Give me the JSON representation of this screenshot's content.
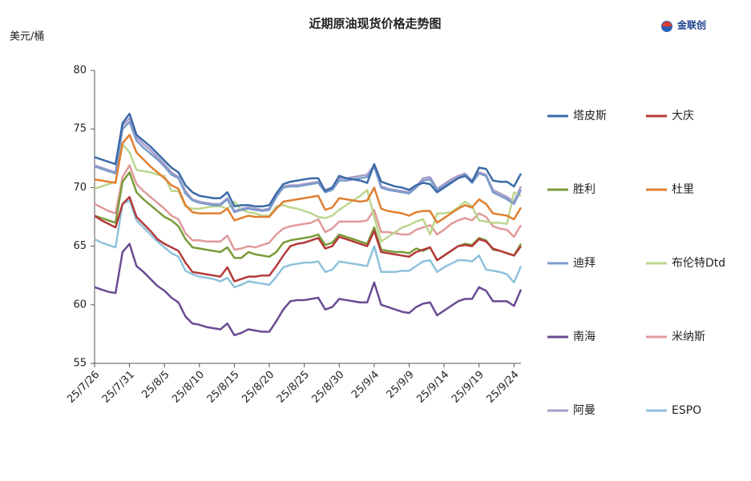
{
  "chart_data": {
    "type": "line",
    "title": "近期原油现货价格走势图",
    "y_label": "美元/桶",
    "logo": "金联创",
    "categories": [
      "25/7/26",
      null,
      null,
      null,
      null,
      "25/7/31",
      null,
      null,
      null,
      null,
      "25/8/5",
      null,
      null,
      null,
      null,
      "25/8/10",
      null,
      null,
      null,
      null,
      "25/8/15",
      null,
      null,
      null,
      null,
      "25/8/20",
      null,
      null,
      null,
      null,
      "25/8/25",
      null,
      null,
      null,
      null,
      "25/8/30",
      null,
      null,
      null,
      null,
      "25/9/4",
      null,
      null,
      null,
      null,
      "25/9/9",
      null,
      null,
      null,
      null,
      "25/9/14",
      null,
      null,
      null,
      null,
      "25/9/19",
      null,
      null,
      null,
      null,
      "25/9/24",
      null
    ],
    "ylim": [
      55,
      80
    ],
    "yticks": [
      55,
      60,
      65,
      70,
      75,
      80
    ],
    "grid": false,
    "series": [
      {
        "name": "塔皮斯",
        "color": "#3b6aa8",
        "values": [
          72.6,
          72.4,
          72.2,
          72.0,
          75.5,
          76.3,
          74.5,
          74.0,
          73.5,
          72.9,
          72.3,
          71.7,
          71.3,
          70.2,
          69.6,
          69.3,
          69.2,
          69.1,
          69.1,
          69.6,
          68.4,
          68.5,
          68.5,
          68.4,
          68.4,
          68.5,
          69.5,
          70.3,
          70.5,
          70.6,
          70.7,
          70.8,
          70.8,
          69.7,
          70.0,
          71.0,
          70.8,
          70.7,
          70.6,
          70.4,
          72.0,
          70.5,
          70.3,
          70.1,
          70.0,
          69.8,
          70.2,
          70.4,
          70.3,
          69.6,
          70.0,
          70.4,
          70.8,
          71.0,
          70.5,
          71.7,
          71.6,
          70.6,
          70.5,
          70.5,
          70.1,
          71.2
        ]
      },
      {
        "name": "大庆",
        "color": "#b5393a",
        "values": [
          67.6,
          67.2,
          66.9,
          66.6,
          68.6,
          69.2,
          67.5,
          66.9,
          66.3,
          65.6,
          65.2,
          64.9,
          64.6,
          63.6,
          62.8,
          62.7,
          62.6,
          62.5,
          62.4,
          63.2,
          62.0,
          62.2,
          62.4,
          62.4,
          62.5,
          62.5,
          63.3,
          64.2,
          65.0,
          65.2,
          65.3,
          65.5,
          65.7,
          64.8,
          65.0,
          65.8,
          65.6,
          65.4,
          65.2,
          65.0,
          66.3,
          64.5,
          64.4,
          64.3,
          64.2,
          64.1,
          64.5,
          64.7,
          64.9,
          63.8,
          64.2,
          64.6,
          65.0,
          65.1,
          65.0,
          65.6,
          65.4,
          64.8,
          64.6,
          64.4,
          64.2,
          65.0
        ]
      },
      {
        "name": "胜利",
        "color": "#7a9a3a",
        "values": [
          67.6,
          67.4,
          67.2,
          67.0,
          70.5,
          71.3,
          69.6,
          69.0,
          68.5,
          68.0,
          67.5,
          67.2,
          66.7,
          65.6,
          64.9,
          64.8,
          64.7,
          64.6,
          64.5,
          64.9,
          64.0,
          64.0,
          64.5,
          64.3,
          64.2,
          64.1,
          64.5,
          65.3,
          65.5,
          65.6,
          65.7,
          65.8,
          66.0,
          65.1,
          65.3,
          66.0,
          65.8,
          65.6,
          65.4,
          65.2,
          66.6,
          64.7,
          64.6,
          64.5,
          64.5,
          64.4,
          64.8,
          64.6,
          64.9,
          63.8,
          64.2,
          64.6,
          65.0,
          65.2,
          65.1,
          65.7,
          65.5,
          64.7,
          64.6,
          64.4,
          64.2,
          65.2
        ]
      },
      {
        "name": "杜里",
        "color": "#e07f30",
        "values": [
          70.7,
          70.6,
          70.5,
          70.4,
          73.8,
          74.5,
          73.0,
          72.4,
          71.8,
          71.3,
          70.8,
          70.2,
          69.9,
          68.5,
          67.9,
          67.8,
          67.8,
          67.8,
          67.8,
          68.2,
          67.2,
          67.4,
          67.6,
          67.5,
          67.5,
          67.5,
          68.2,
          68.8,
          68.9,
          69.0,
          69.1,
          69.2,
          69.3,
          68.1,
          68.3,
          69.1,
          69.0,
          68.9,
          68.8,
          68.9,
          70.0,
          68.2,
          68.0,
          67.9,
          67.8,
          67.6,
          67.9,
          68.0,
          68.0,
          67.0,
          67.4,
          67.8,
          68.2,
          68.5,
          68.3,
          69.0,
          68.6,
          67.8,
          67.7,
          67.6,
          67.3,
          68.3
        ]
      },
      {
        "name": "迪拜",
        "color": "#7b9ccc",
        "values": [
          71.8,
          71.6,
          71.4,
          71.2,
          75.0,
          75.6,
          74.0,
          73.4,
          72.9,
          72.4,
          71.8,
          71.1,
          70.8,
          69.5,
          68.9,
          68.7,
          68.6,
          68.5,
          68.5,
          69.0,
          67.9,
          68.1,
          68.2,
          68.1,
          68.0,
          68.1,
          69.2,
          70.0,
          70.1,
          70.1,
          70.2,
          70.3,
          70.4,
          69.6,
          69.8,
          70.6,
          70.6,
          70.7,
          70.8,
          70.9,
          71.8,
          70.0,
          69.8,
          69.7,
          69.6,
          69.5,
          70.0,
          70.6,
          70.7,
          69.8,
          70.1,
          70.5,
          70.8,
          71.1,
          70.4,
          71.2,
          71.0,
          69.6,
          69.3,
          69.0,
          68.6,
          69.8
        ]
      },
      {
        "name": "布伦特Dtd",
        "color": "#bcd68f",
        "values": [
          69.9,
          70.1,
          70.3,
          70.5,
          73.7,
          73.0,
          71.5,
          71.4,
          71.3,
          71.1,
          71.0,
          69.7,
          69.7,
          68.4,
          68.2,
          68.2,
          68.3,
          68.4,
          68.4,
          68.2,
          68.8,
          68.1,
          67.9,
          67.8,
          67.6,
          67.6,
          68.4,
          68.5,
          68.3,
          68.2,
          68.0,
          67.8,
          67.5,
          67.4,
          67.6,
          68.1,
          68.5,
          68.9,
          69.3,
          69.8,
          67.5,
          65.4,
          65.8,
          66.2,
          66.6,
          66.8,
          67.1,
          67.3,
          66.0,
          67.8,
          67.8,
          67.9,
          68.3,
          68.8,
          68.4,
          67.2,
          67.1,
          67.0,
          67.0,
          66.9,
          69.6,
          69.3
        ]
      },
      {
        "name": "南海",
        "color": "#6a4a92",
        "values": [
          61.5,
          61.3,
          61.1,
          61.0,
          64.5,
          65.2,
          63.3,
          62.8,
          62.2,
          61.6,
          61.2,
          60.6,
          60.2,
          59.0,
          58.4,
          58.3,
          58.1,
          58.0,
          57.9,
          58.4,
          57.4,
          57.6,
          57.9,
          57.8,
          57.7,
          57.7,
          58.6,
          59.6,
          60.3,
          60.4,
          60.4,
          60.5,
          60.6,
          59.6,
          59.8,
          60.5,
          60.4,
          60.3,
          60.2,
          60.2,
          61.9,
          60.0,
          59.8,
          59.6,
          59.4,
          59.3,
          59.8,
          60.1,
          60.2,
          59.1,
          59.5,
          59.9,
          60.3,
          60.5,
          60.5,
          61.5,
          61.2,
          60.3,
          60.3,
          60.3,
          59.9,
          61.3
        ]
      },
      {
        "name": "米纳斯",
        "color": "#e09a9a",
        "values": [
          68.6,
          68.3,
          68.0,
          67.8,
          70.9,
          71.9,
          70.3,
          69.7,
          69.2,
          68.7,
          68.2,
          67.6,
          67.3,
          66.1,
          65.5,
          65.5,
          65.4,
          65.4,
          65.4,
          65.9,
          64.7,
          64.8,
          65.0,
          64.9,
          65.1,
          65.3,
          66.0,
          66.5,
          66.7,
          66.8,
          66.9,
          67.0,
          67.3,
          66.2,
          66.5,
          67.1,
          67.1,
          67.1,
          67.1,
          67.2,
          68.1,
          66.2,
          66.2,
          66.1,
          66.0,
          66.0,
          66.4,
          66.6,
          66.8,
          66.0,
          66.4,
          66.9,
          67.2,
          67.4,
          67.2,
          67.8,
          67.5,
          66.7,
          66.5,
          66.4,
          65.8,
          66.8
        ]
      },
      {
        "name": "阿曼",
        "color": "#a89cc8",
        "values": [
          71.9,
          71.7,
          71.5,
          71.3,
          75.3,
          75.9,
          74.3,
          73.7,
          73.2,
          72.6,
          72.0,
          71.3,
          70.9,
          69.7,
          69.0,
          68.8,
          68.7,
          68.6,
          68.6,
          69.1,
          68.0,
          68.2,
          68.3,
          68.2,
          68.1,
          68.2,
          69.4,
          70.1,
          70.2,
          70.2,
          70.3,
          70.4,
          70.5,
          69.8,
          70.0,
          70.8,
          70.8,
          70.9,
          71.0,
          71.1,
          71.9,
          70.1,
          69.9,
          69.8,
          69.7,
          69.6,
          70.1,
          70.8,
          70.9,
          69.9,
          70.3,
          70.7,
          71.0,
          71.2,
          70.6,
          71.3,
          71.1,
          69.8,
          69.5,
          69.2,
          68.8,
          70.1
        ]
      },
      {
        "name": "ESPO",
        "color": "#8ec2dc",
        "values": [
          65.6,
          65.3,
          65.1,
          64.9,
          68.6,
          68.9,
          67.2,
          66.6,
          66.0,
          65.4,
          64.9,
          64.4,
          64.1,
          62.9,
          62.6,
          62.4,
          62.3,
          62.2,
          62.0,
          62.3,
          61.5,
          61.7,
          62.0,
          61.9,
          61.8,
          61.7,
          62.4,
          63.2,
          63.4,
          63.5,
          63.6,
          63.6,
          63.7,
          62.8,
          63.0,
          63.7,
          63.6,
          63.5,
          63.4,
          63.3,
          65.0,
          62.8,
          62.8,
          62.8,
          62.9,
          62.9,
          63.3,
          63.7,
          63.8,
          62.8,
          63.2,
          63.5,
          63.8,
          63.8,
          63.7,
          64.2,
          63.0,
          62.9,
          62.8,
          62.6,
          61.9,
          63.3
        ]
      }
    ]
  }
}
